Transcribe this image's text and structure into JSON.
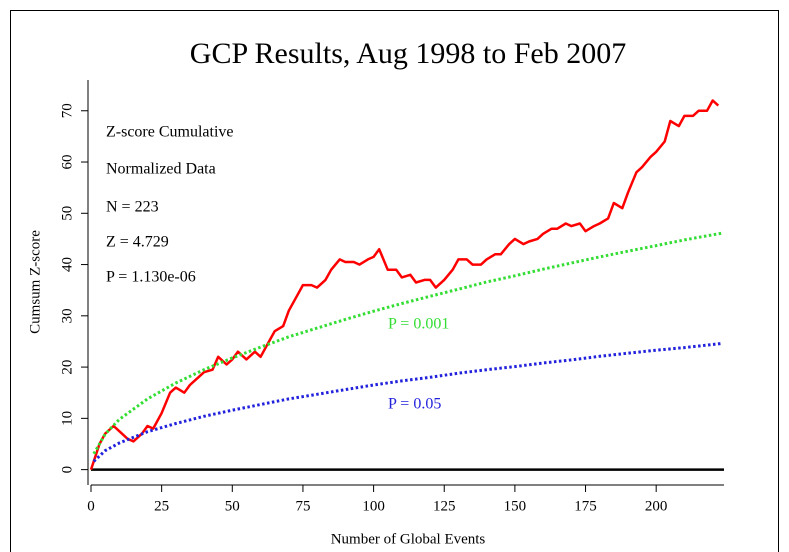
{
  "chart_data": {
    "type": "line",
    "title": "GCP Results, Aug 1998 to Feb 2007",
    "x_label": "Number of Global Events",
    "y_label": "Cumsum Z-score",
    "xlim": [
      0,
      224
    ],
    "ylim": [
      -3,
      76
    ],
    "xticks": [
      0,
      25,
      50,
      75,
      100,
      125,
      150,
      175,
      200
    ],
    "yticks": [
      0,
      10,
      20,
      30,
      40,
      50,
      60,
      70
    ],
    "reference_line": 0,
    "annotations": [
      "Z-score Cumulative",
      "Normalized Data",
      "N = 223",
      "Z = 4.729",
      "P = 1.130e-06",
      "P = 0.001",
      "P = 0.05"
    ],
    "series": [
      {
        "name": "Z-score Cumulative",
        "color": "#ff0000",
        "dashed": false,
        "x": [
          0,
          3,
          5,
          8,
          10,
          13,
          15,
          18,
          20,
          22,
          25,
          28,
          30,
          33,
          35,
          38,
          40,
          43,
          45,
          48,
          50,
          52,
          55,
          58,
          60,
          63,
          65,
          68,
          70,
          73,
          75,
          78,
          80,
          83,
          85,
          88,
          90,
          93,
          95,
          98,
          100,
          102,
          105,
          108,
          110,
          113,
          115,
          118,
          120,
          122,
          125,
          128,
          130,
          133,
          135,
          138,
          140,
          143,
          145,
          148,
          150,
          153,
          155,
          158,
          160,
          163,
          165,
          168,
          170,
          173,
          175,
          178,
          180,
          183,
          185,
          188,
          190,
          193,
          195,
          198,
          200,
          203,
          205,
          208,
          210,
          213,
          215,
          218,
          220,
          222
        ],
        "values": [
          0,
          5,
          7,
          8.5,
          7.5,
          6,
          5.5,
          7,
          8.5,
          8,
          11,
          15,
          16,
          15,
          16.5,
          18,
          19,
          19.5,
          22,
          20.5,
          21.5,
          23,
          21.5,
          23,
          22,
          25,
          27,
          28,
          31,
          34,
          36,
          36,
          35.5,
          37,
          39,
          41,
          40.5,
          40.5,
          40,
          41,
          41.5,
          43,
          39,
          39,
          37.5,
          38,
          36.5,
          37,
          37,
          35.5,
          37,
          39,
          41,
          41,
          40,
          40,
          41,
          42,
          42,
          44,
          45,
          44,
          44.5,
          45,
          46,
          47,
          47,
          48,
          47.5,
          48,
          46.5,
          47.5,
          48,
          49,
          52,
          51,
          54,
          58,
          59,
          61,
          62,
          64,
          68,
          67,
          69,
          69,
          70,
          70,
          72,
          71
        ]
      },
      {
        "name": "P = 0.001",
        "color": "#33dd33",
        "dashed": true,
        "x": [
          1,
          5,
          10,
          20,
          30,
          40,
          50,
          60,
          70,
          80,
          90,
          100,
          110,
          120,
          130,
          140,
          150,
          160,
          170,
          180,
          190,
          200,
          210,
          220,
          223
        ],
        "values": [
          3.09,
          6.9,
          9.8,
          13.8,
          16.9,
          19.5,
          21.8,
          23.9,
          25.9,
          27.6,
          29.3,
          30.9,
          32.4,
          33.8,
          35.2,
          36.6,
          37.8,
          39.1,
          40.3,
          41.5,
          42.6,
          43.7,
          44.8,
          45.8,
          46.1
        ]
      },
      {
        "name": "P = 0.05",
        "color": "#2222dd",
        "dashed": true,
        "x": [
          1,
          5,
          10,
          20,
          30,
          40,
          50,
          60,
          70,
          80,
          90,
          100,
          110,
          120,
          130,
          140,
          150,
          160,
          170,
          180,
          190,
          200,
          210,
          220,
          223
        ],
        "values": [
          1.6,
          3.7,
          5.2,
          7.4,
          9.0,
          10.4,
          11.6,
          12.7,
          13.8,
          14.7,
          15.6,
          16.5,
          17.3,
          18.0,
          18.8,
          19.5,
          20.1,
          20.8,
          21.4,
          22.1,
          22.7,
          23.3,
          23.8,
          24.4,
          24.6
        ]
      }
    ]
  }
}
